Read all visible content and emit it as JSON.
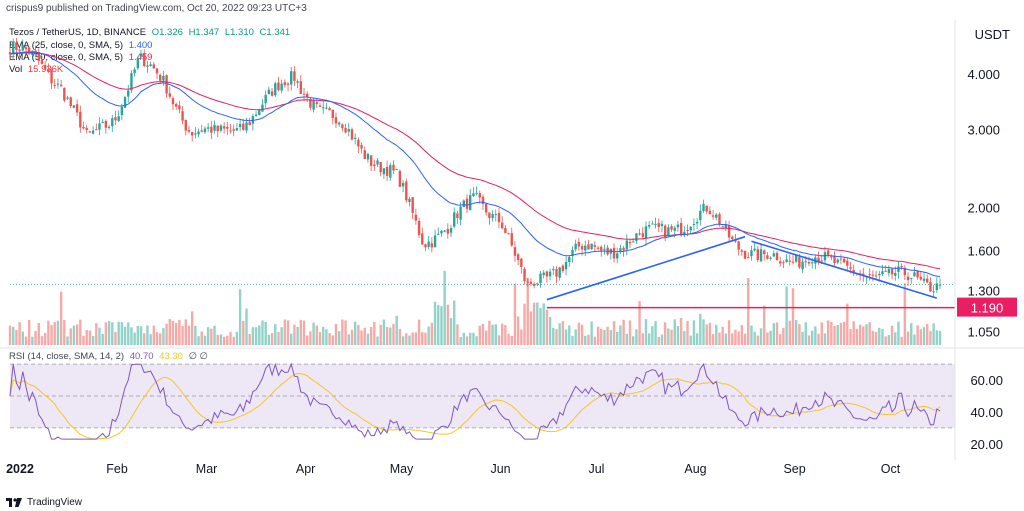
{
  "header": {
    "published": "crispus9 published on TradingView.com, Oct 20, 2022 09:23 UTC+3",
    "symbol": "Tezos / TetherUS, 1D, BINANCE",
    "ohlc": {
      "O": "O1.326",
      "H": "H1.347",
      "L": "L1.310",
      "C": "C1.341"
    },
    "ema25_label": "EMA (25, close, 0, SMA, 5)",
    "ema25_value": "1.400",
    "ema50_label": "EMA (50, close, 0, SMA, 5)",
    "ema50_value": "1.459",
    "vol_label": "Vol",
    "vol_value": "15.936K",
    "rsi_label": "RSI (14, close, SMA, 14, 2)",
    "rsi_value": "40.70",
    "rsi_sma_value": "43.30",
    "rsi_extra": "∅ ∅",
    "currency": "USDT"
  },
  "footer": {
    "brand": "TradingView"
  },
  "colors": {
    "up": "#26a69a",
    "down": "#ef5350",
    "ema25": "#2962ff",
    "ema50": "#e91e63",
    "rsi": "#7e57c2",
    "rsi_ma": "#f7c52b",
    "trend": "#2962ff",
    "support": "#e91e63",
    "rsi_band": "#ede7f6"
  },
  "chart_data": {
    "type": "candlestick",
    "price_axis": {
      "scale": "log",
      "ticks": [
        "4.000",
        "3.000",
        "2.000",
        "1.600",
        "1.300",
        "1.050"
      ]
    },
    "time_axis": {
      "ticks": [
        "2022",
        "Feb",
        "Mar",
        "Apr",
        "May",
        "Jun",
        "Jul",
        "Aug",
        "Sep",
        "Oct"
      ]
    },
    "support_level": {
      "value": 1.19,
      "label": "1.190"
    },
    "rsi_axis": {
      "ticks": [
        "60.00",
        "40.00",
        "20.00"
      ],
      "band": [
        30,
        70
      ]
    },
    "trendlines": [
      {
        "from": [
          "2022-06-18",
          1.24
        ],
        "to": [
          "2022-08-19",
          1.72
        ]
      },
      {
        "from": [
          "2022-08-21",
          1.68
        ],
        "to": [
          "2022-10-18",
          1.25
        ]
      }
    ],
    "weekly_closes": [
      4.6,
      4.3,
      3.8,
      2.8,
      3.2,
      4.3,
      3.8,
      3.0,
      2.9,
      3.1,
      3.5,
      4.0,
      3.3,
      3.0,
      2.6,
      2.3,
      1.7,
      1.8,
      2.1,
      1.9,
      1.3,
      1.45,
      1.6,
      1.6,
      1.7,
      1.75,
      1.85,
      1.95,
      1.7,
      1.55,
      1.5,
      1.6,
      1.45,
      1.45,
      1.38,
      1.4,
      1.34
    ],
    "series": [
      {
        "name": "EMA (25, close, 0, SMA, 5)",
        "last": 1.4
      },
      {
        "name": "EMA (50, close, 0, SMA, 5)",
        "last": 1.459
      },
      {
        "name": "RSI (14, close, SMA, 14, 2)",
        "last": 40.7
      },
      {
        "name": "RSI SMA",
        "last": 43.3
      }
    ],
    "last_volume": "15.936K"
  }
}
